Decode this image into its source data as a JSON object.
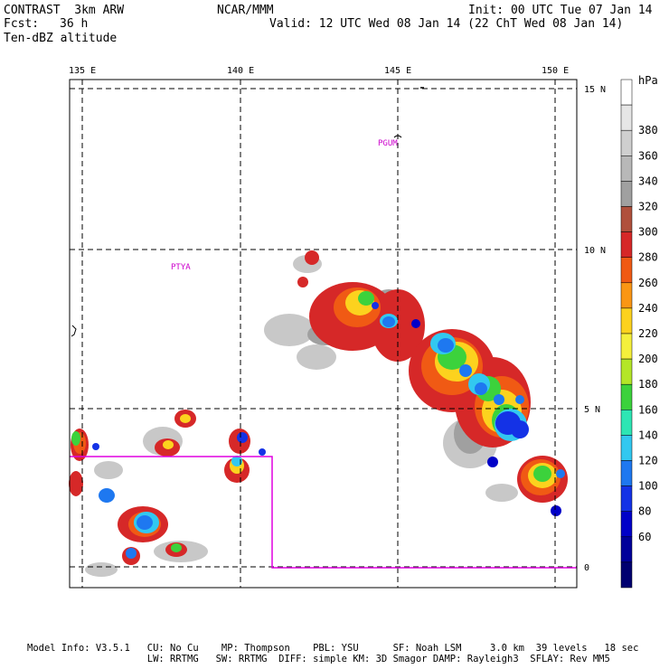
{
  "header": {
    "model": "CONTRAST  3km ARW",
    "org": "NCAR/MMM",
    "init": "Init: 00 UTC Tue 07 Jan 14",
    "fcst_label": "Fcst:",
    "fcst_value": "36 h",
    "valid": "Valid: 12 UTC Wed 08 Jan 14 (22 ChT Wed 08 Jan 14)",
    "field": "Ten-dBZ altitude"
  },
  "map": {
    "lon_ticks": [
      "135 E",
      "140 E",
      "145 E",
      "150 E"
    ],
    "lat_ticks": [
      "15 N",
      "10 N",
      "5 N",
      "0"
    ],
    "sites": [
      "PGUM",
      "PTYA"
    ]
  },
  "colorbar": {
    "unit": "hPa",
    "labels": [
      "380",
      "360",
      "340",
      "320",
      "300",
      "280",
      "260",
      "240",
      "220",
      "200",
      "180",
      "160",
      "140",
      "120",
      "100",
      "80",
      "60"
    ],
    "colors": [
      "#ffffff",
      "#e6e6e6",
      "#cfcfcf",
      "#b8b8b8",
      "#a0a0a0",
      "#b0503c",
      "#d62828",
      "#f05a14",
      "#fa9614",
      "#fcd21e",
      "#f5f03c",
      "#b4e628",
      "#3cd23c",
      "#2ee6b4",
      "#32c8f0",
      "#1e78f0",
      "#1432e6",
      "#0000c8",
      "#00009a",
      "#000070"
    ]
  },
  "footer": {
    "line1": "Model Info: V3.5.1   CU: No Cu    MP: Thompson    PBL: YSU      SF: Noah LSM     3.0 km  39 levels   18 sec",
    "line2": "                     LW: RRTMG   SW: RRTMG  DIFF: simple KM: 3D Smagor DAMP: Rayleigh3  SFLAY: Rev MM5"
  }
}
